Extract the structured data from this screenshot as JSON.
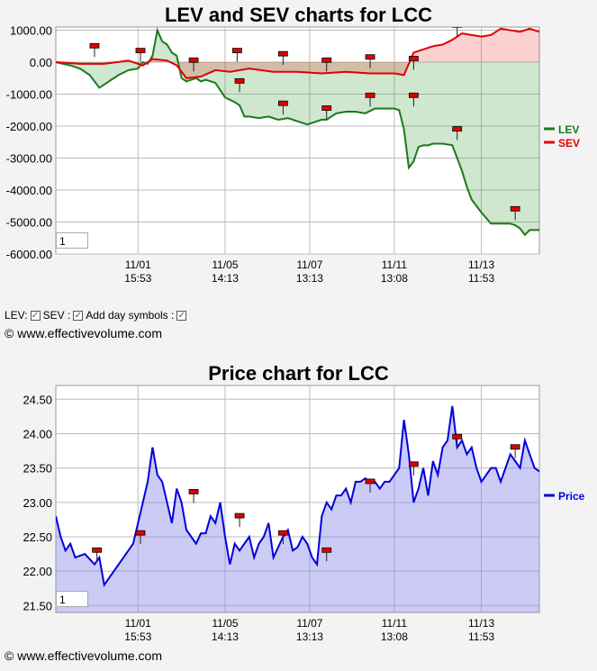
{
  "copyright": "© www.effectivevolume.com",
  "controls": {
    "lev_label": "LEV:",
    "sev_label": "SEV :",
    "day_label": "Add day symbols :",
    "check": "✓"
  },
  "chart_data": [
    {
      "type": "area",
      "title": "LEV and SEV charts for LCC",
      "input_value": "1",
      "xlim": [
        0,
        100
      ],
      "ylim": [
        -6000,
        1100
      ],
      "yticks": [
        1000,
        0,
        -1000,
        -2000,
        -3000,
        -4000,
        -5000,
        -6000
      ],
      "ytick_labels": [
        "1000.00",
        "0.00",
        "-1000.00",
        "-2000.00",
        "-3000.00",
        "-4000.00",
        "-5000.00",
        "-6000.00"
      ],
      "xticks": [
        {
          "x": 17,
          "label": [
            "11/01",
            "15:53"
          ]
        },
        {
          "x": 35,
          "label": [
            "11/05",
            "14:13"
          ]
        },
        {
          "x": 52.5,
          "label": [
            "11/07",
            "13:13"
          ]
        },
        {
          "x": 70,
          "label": [
            "11/11",
            "13:08"
          ]
        },
        {
          "x": 88,
          "label": [
            "11/13",
            "11:53"
          ]
        }
      ],
      "series": [
        {
          "name": "LEV",
          "color": "#1a7a1a",
          "x": [
            0,
            3,
            5,
            7,
            9,
            11,
            13,
            15,
            17,
            18,
            19,
            20,
            21,
            22,
            23,
            24,
            25,
            26,
            27,
            28,
            29,
            30,
            31,
            33,
            35,
            37,
            38,
            39,
            40,
            42,
            44,
            46,
            48,
            50,
            52,
            54,
            55,
            56,
            57,
            58,
            60,
            62,
            64,
            66,
            68,
            70,
            71,
            72,
            73,
            74,
            75,
            76,
            77,
            78,
            80,
            82,
            84,
            85,
            86,
            87,
            88,
            90,
            91,
            92,
            93,
            94,
            95,
            96,
            97,
            98,
            100
          ],
          "y": [
            0,
            -100,
            -200,
            -400,
            -800,
            -600,
            -400,
            -250,
            -200,
            0,
            -50,
            200,
            1000,
            650,
            550,
            300,
            200,
            -500,
            -600,
            -550,
            -500,
            -600,
            -550,
            -650,
            -1100,
            -1250,
            -1350,
            -1700,
            -1700,
            -1750,
            -1700,
            -1800,
            -1750,
            -1850,
            -1950,
            -1850,
            -1800,
            -1800,
            -1700,
            -1600,
            -1550,
            -1550,
            -1600,
            -1450,
            -1450,
            -1450,
            -1500,
            -2100,
            -3300,
            -3100,
            -2650,
            -2600,
            -2600,
            -2550,
            -2550,
            -2600,
            -3400,
            -3900,
            -4300,
            -4500,
            -4700,
            -5050,
            -5050,
            -5050,
            -5050,
            -5050,
            -5100,
            -5200,
            -5400,
            -5250,
            -5250
          ]
        },
        {
          "name": "SEV",
          "color": "#e00000",
          "x": [
            0,
            5,
            10,
            15,
            18,
            20,
            23,
            25,
            27,
            30,
            33,
            36,
            40,
            45,
            50,
            55,
            60,
            65,
            70,
            72,
            74,
            76,
            78,
            80,
            82,
            84,
            86,
            88,
            90,
            92,
            94,
            96,
            98,
            100
          ],
          "y": [
            0,
            -50,
            -50,
            50,
            -100,
            100,
            50,
            -100,
            -500,
            -450,
            -250,
            -300,
            -200,
            -300,
            -300,
            -350,
            -300,
            -350,
            -350,
            -400,
            300,
            400,
            500,
            550,
            700,
            900,
            850,
            800,
            850,
            1050,
            1000,
            950,
            1050,
            950
          ]
        }
      ],
      "day_symbols": [
        {
          "x": 8,
          "y": 500
        },
        {
          "x": 17.5,
          "y": 350
        },
        {
          "x": 28.5,
          "y": 50
        },
        {
          "x": 37.5,
          "y": 350
        },
        {
          "x": 38,
          "y": -600
        },
        {
          "x": 47,
          "y": 250
        },
        {
          "x": 47,
          "y": -1300
        },
        {
          "x": 56,
          "y": 50
        },
        {
          "x": 56,
          "y": -1450
        },
        {
          "x": 65,
          "y": 150
        },
        {
          "x": 65,
          "y": -1050
        },
        {
          "x": 74,
          "y": 100
        },
        {
          "x": 74,
          "y": -1050
        },
        {
          "x": 83,
          "y": 1150
        },
        {
          "x": 83,
          "y": -2100
        },
        {
          "x": 95,
          "y": 1550
        },
        {
          "x": 95,
          "y": -4600
        }
      ],
      "legend": [
        "LEV",
        "SEV"
      ]
    },
    {
      "type": "area",
      "title": "Price chart for LCC",
      "input_value": "1",
      "xlim": [
        0,
        100
      ],
      "ylim": [
        21.4,
        24.7
      ],
      "yticks": [
        24.5,
        24.0,
        23.5,
        23.0,
        22.5,
        22.0,
        21.5
      ],
      "ytick_labels": [
        "24.50",
        "24.00",
        "23.50",
        "23.00",
        "22.50",
        "22.00",
        "21.50"
      ],
      "xticks": [
        {
          "x": 17,
          "label": [
            "11/01",
            "15:53"
          ]
        },
        {
          "x": 35,
          "label": [
            "11/05",
            "14:13"
          ]
        },
        {
          "x": 52.5,
          "label": [
            "11/07",
            "13:13"
          ]
        },
        {
          "x": 70,
          "label": [
            "11/11",
            "13:08"
          ]
        },
        {
          "x": 88,
          "label": [
            "11/13",
            "11:53"
          ]
        }
      ],
      "series": [
        {
          "name": "Price",
          "color": "#0000dd",
          "x": [
            0,
            1,
            2,
            3,
            4,
            6,
            8,
            9,
            10,
            12,
            14,
            16,
            18,
            19,
            20,
            21,
            22,
            23,
            24,
            25,
            26,
            27,
            28,
            29,
            30,
            31,
            32,
            33,
            34,
            35,
            36,
            37,
            38,
            39,
            40,
            41,
            42,
            43,
            44,
            45,
            46,
            47,
            48,
            49,
            50,
            51,
            52,
            53,
            54,
            55,
            56,
            57,
            58,
            59,
            60,
            61,
            62,
            63,
            64,
            65,
            66,
            67,
            68,
            69,
            70,
            71,
            72,
            73,
            74,
            75,
            76,
            77,
            78,
            79,
            80,
            81,
            82,
            83,
            84,
            85,
            86,
            87,
            88,
            89,
            90,
            91,
            92,
            93,
            94,
            95,
            96,
            97,
            98,
            99,
            100
          ],
          "y": [
            22.8,
            22.5,
            22.3,
            22.4,
            22.2,
            22.25,
            22.1,
            22.2,
            21.8,
            22.0,
            22.2,
            22.4,
            23.0,
            23.3,
            23.8,
            23.4,
            23.3,
            23.0,
            22.7,
            23.2,
            23.0,
            22.6,
            22.5,
            22.4,
            22.55,
            22.55,
            22.8,
            22.7,
            23.0,
            22.5,
            22.1,
            22.4,
            22.3,
            22.4,
            22.5,
            22.2,
            22.4,
            22.5,
            22.7,
            22.2,
            22.35,
            22.5,
            22.6,
            22.3,
            22.35,
            22.5,
            22.4,
            22.2,
            22.1,
            22.8,
            23.0,
            22.9,
            23.1,
            23.1,
            23.2,
            23.0,
            23.3,
            23.3,
            23.35,
            23.3,
            23.3,
            23.2,
            23.3,
            23.3,
            23.4,
            23.5,
            24.2,
            23.7,
            23.0,
            23.2,
            23.5,
            23.1,
            23.6,
            23.4,
            23.8,
            23.9,
            24.4,
            23.8,
            23.9,
            23.7,
            23.8,
            23.5,
            23.3,
            23.4,
            23.5,
            23.5,
            23.3,
            23.5,
            23.7,
            23.6,
            23.5,
            23.9,
            23.7,
            23.5,
            23.45
          ]
        }
      ],
      "day_symbols": [
        {
          "x": 8.5,
          "y": 22.3
        },
        {
          "x": 17.5,
          "y": 22.55
        },
        {
          "x": 28.5,
          "y": 23.15
        },
        {
          "x": 38,
          "y": 22.8
        },
        {
          "x": 47,
          "y": 22.55
        },
        {
          "x": 56,
          "y": 22.3
        },
        {
          "x": 65,
          "y": 23.3
        },
        {
          "x": 74,
          "y": 23.55
        },
        {
          "x": 83,
          "y": 23.95
        },
        {
          "x": 95,
          "y": 23.8
        }
      ],
      "legend": [
        "Price"
      ]
    }
  ]
}
